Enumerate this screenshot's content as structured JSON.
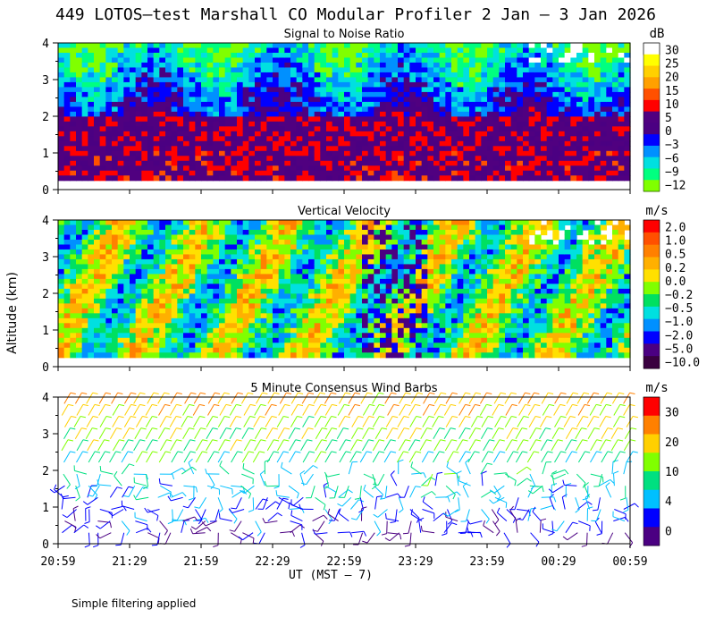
{
  "figure": {
    "title": "449 LOTOS—test Marshall CO Modular Profiler  2 Jan —  3 Jan 2026",
    "ylabel": "Altitude (km)",
    "xlabel": "UT  (MST — 7)",
    "footnote": "Simple filtering applied",
    "time_ticks": [
      "20:59",
      "21:29",
      "21:59",
      "22:29",
      "22:59",
      "23:29",
      "23:59",
      "00:29",
      "00:59"
    ],
    "altitude_ticks": [
      "0",
      "1",
      "2",
      "3",
      "4"
    ]
  },
  "chart_data": [
    {
      "type": "heatmap",
      "title": "Signal to Noise Ratio",
      "units": "dB",
      "x_range": [
        "20:59",
        "00:59"
      ],
      "y_range_km": [
        0,
        4
      ],
      "data_floor_km": 0.25,
      "colorbar_labels": [
        "30",
        "25",
        "20",
        "15",
        "10",
        "5",
        "0",
        "−3",
        "−6",
        "−9",
        "−12"
      ],
      "colorbar_colors": [
        "#ffffff",
        "#ffff00",
        "#ffd000",
        "#ffa000",
        "#ff5000",
        "#ff0000",
        "#500080",
        "#4b0082",
        "#0000ff",
        "#0090ff",
        "#00e0e0",
        "#00ff80",
        "#80ff00"
      ]
    },
    {
      "type": "heatmap",
      "title": "Vertical Velocity",
      "units": "m/s",
      "x_range": [
        "20:59",
        "00:59"
      ],
      "y_range_km": [
        0,
        4
      ],
      "data_floor_km": 0.25,
      "colorbar_labels": [
        "2.0",
        "1.0",
        "0.5",
        "0.2",
        "0.0",
        "−0.2",
        "−0.5",
        "−1.0",
        "−2.0",
        "−5.0",
        "−10.0"
      ],
      "colorbar_colors": [
        "#ff0000",
        "#ff5000",
        "#ff8000",
        "#ffb000",
        "#ffe000",
        "#80ff00",
        "#00e060",
        "#00e0e0",
        "#0090ff",
        "#0000ff",
        "#4b0082",
        "#3a0040"
      ]
    },
    {
      "type": "scatter",
      "title": "5 Minute Consensus Wind Barbs",
      "units": "m/s",
      "x_range": [
        "20:59",
        "00:59"
      ],
      "y_range_km": [
        0,
        4
      ],
      "colorbar_labels": [
        "30",
        "20",
        "10",
        "4",
        "0"
      ],
      "colorbar_colors": [
        "#ff0000",
        "#ff8000",
        "#ffd000",
        "#80ff00",
        "#00e080",
        "#00c0ff",
        "#0000ff",
        "#4b0082"
      ]
    }
  ]
}
